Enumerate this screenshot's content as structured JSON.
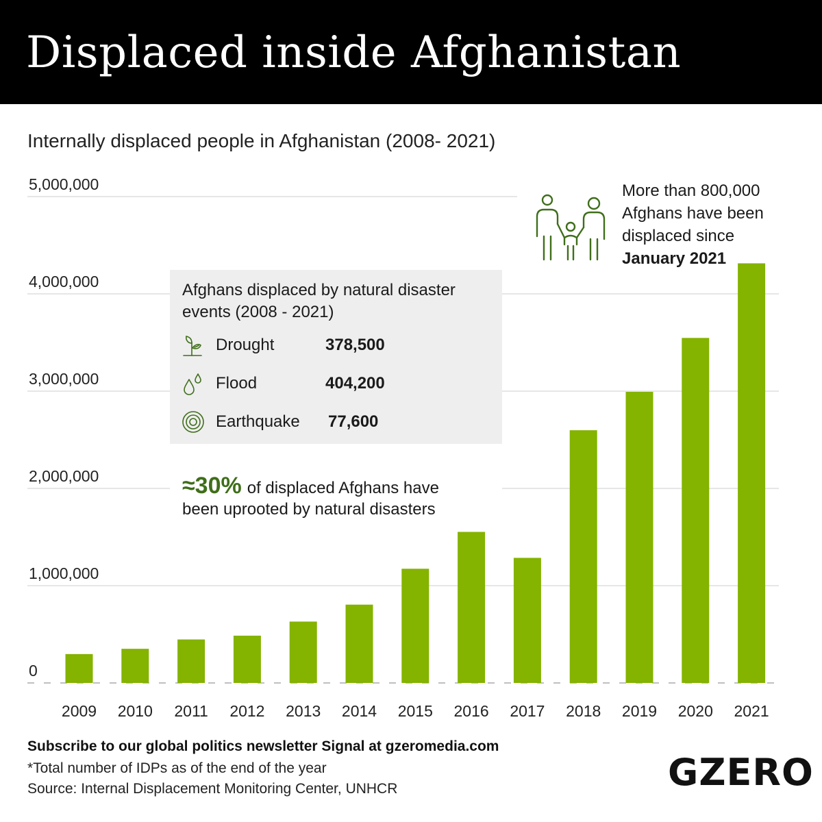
{
  "header": {
    "title": "Displaced inside Afghanistan"
  },
  "subtitle": "Internally displaced people in Afghanistan (2008- 2021)",
  "colors": {
    "bar": "#84b300",
    "accent": "#3f6e1a",
    "header_bg": "#000000",
    "callout_bg": "#eeeeee",
    "grid": "#cccccc"
  },
  "chart_data": {
    "type": "bar",
    "categories": [
      "2009",
      "2010",
      "2011",
      "2012",
      "2013",
      "2014",
      "2015",
      "2016",
      "2017",
      "2018",
      "2019",
      "2020",
      "2021"
    ],
    "values": [
      297000,
      351000,
      447000,
      486000,
      631000,
      805000,
      1174000,
      1553000,
      1286000,
      2598000,
      2993000,
      3547000,
      4314000
    ],
    "y_ticks": [
      "0",
      "1,000,000",
      "2,000,000",
      "3,000,000",
      "4,000,000",
      "5,000,000"
    ],
    "ylim": [
      0,
      5000000
    ],
    "grid": true,
    "legend": "none"
  },
  "callout": {
    "title": "Afghans displaced by natural disaster events (2008 - 2021)",
    "rows": [
      {
        "icon": "sprout-icon",
        "label": "Drought",
        "value": "378,500"
      },
      {
        "icon": "water-drops-icon",
        "label": "Flood",
        "value": "404,200"
      },
      {
        "icon": "concentric-circles-icon",
        "label": "Earthquake",
        "value": "77,600"
      }
    ]
  },
  "percent_note": {
    "value": "≈30%",
    "text_line1": "of displaced Afghans have",
    "text_line2": "been uprooted by natural disasters"
  },
  "family_note": {
    "icon": "family-icon",
    "line1": "More than 800,000",
    "line2": "Afghans have been",
    "line3": "displaced since",
    "line4": "January 2021"
  },
  "footer": {
    "cta": "Subscribe to our global politics newsletter Signal at gzeromedia.com",
    "note": "*Total number of IDPs as of the end of the year",
    "source": "Source: Internal Displacement Monitoring Center, UNHCR"
  },
  "logo": "GZERO"
}
